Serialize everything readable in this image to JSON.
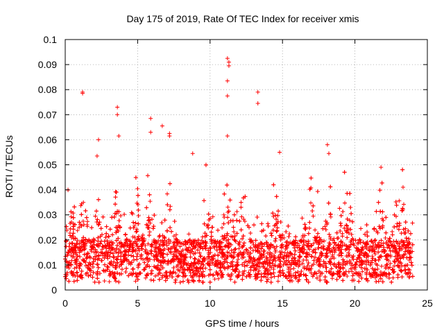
{
  "chart_data": {
    "type": "scatter",
    "title": "Day 175 of 2019, Rate Of TEC Index for receiver xmis",
    "xlabel": "GPS time / hours",
    "ylabel": "ROTI / TECUs",
    "xlim": [
      0,
      25
    ],
    "ylim": [
      0,
      0.1
    ],
    "xticks": [
      0,
      5,
      10,
      15,
      20,
      25
    ],
    "yticks": [
      0,
      0.01,
      0.02,
      0.03,
      0.04,
      0.05,
      0.06,
      0.07,
      0.08,
      0.09,
      0.1
    ],
    "xtick_labels": [
      "0",
      "5",
      "10",
      "15",
      "20",
      "25"
    ],
    "ytick_labels": [
      "0",
      "0.01",
      "0.02",
      "0.03",
      "0.04",
      "0.05",
      "0.06",
      "0.07",
      "0.08",
      "0.09",
      "0.1"
    ],
    "grid": true,
    "marker": "plus",
    "series_color": "#ff0000",
    "x_range_of_data": [
      0,
      24
    ],
    "baseline_band": [
      0.005,
      0.02
    ],
    "series": [
      {
        "name": "ROTI",
        "outliers": [
          {
            "x": 1.2,
            "y": 0.079
          },
          {
            "x": 1.2,
            "y": 0.0785
          },
          {
            "x": 2.3,
            "y": 0.06
          },
          {
            "x": 2.2,
            "y": 0.0535
          },
          {
            "x": 3.6,
            "y": 0.073
          },
          {
            "x": 3.6,
            "y": 0.07
          },
          {
            "x": 3.7,
            "y": 0.0615
          },
          {
            "x": 5.9,
            "y": 0.0685
          },
          {
            "x": 5.9,
            "y": 0.063
          },
          {
            "x": 6.7,
            "y": 0.0655
          },
          {
            "x": 7.2,
            "y": 0.0625
          },
          {
            "x": 7.2,
            "y": 0.0615
          },
          {
            "x": 8.8,
            "y": 0.0545
          },
          {
            "x": 11.2,
            "y": 0.0925
          },
          {
            "x": 11.3,
            "y": 0.091
          },
          {
            "x": 11.3,
            "y": 0.0895
          },
          {
            "x": 11.2,
            "y": 0.0835
          },
          {
            "x": 11.2,
            "y": 0.0775
          },
          {
            "x": 11.2,
            "y": 0.0615
          },
          {
            "x": 13.3,
            "y": 0.079
          },
          {
            "x": 13.3,
            "y": 0.0745
          },
          {
            "x": 14.8,
            "y": 0.055
          },
          {
            "x": 18.1,
            "y": 0.058
          },
          {
            "x": 18.2,
            "y": 0.0545
          },
          {
            "x": 21.8,
            "y": 0.049
          }
        ],
        "activity_peaks_hours": [
          0.3,
          1.2,
          2.5,
          3.6,
          5.0,
          5.8,
          7.2,
          9.8,
          11.2,
          12.2,
          14.5,
          17.0,
          18.2,
          19.4,
          21.9,
          23.2
        ]
      }
    ]
  }
}
